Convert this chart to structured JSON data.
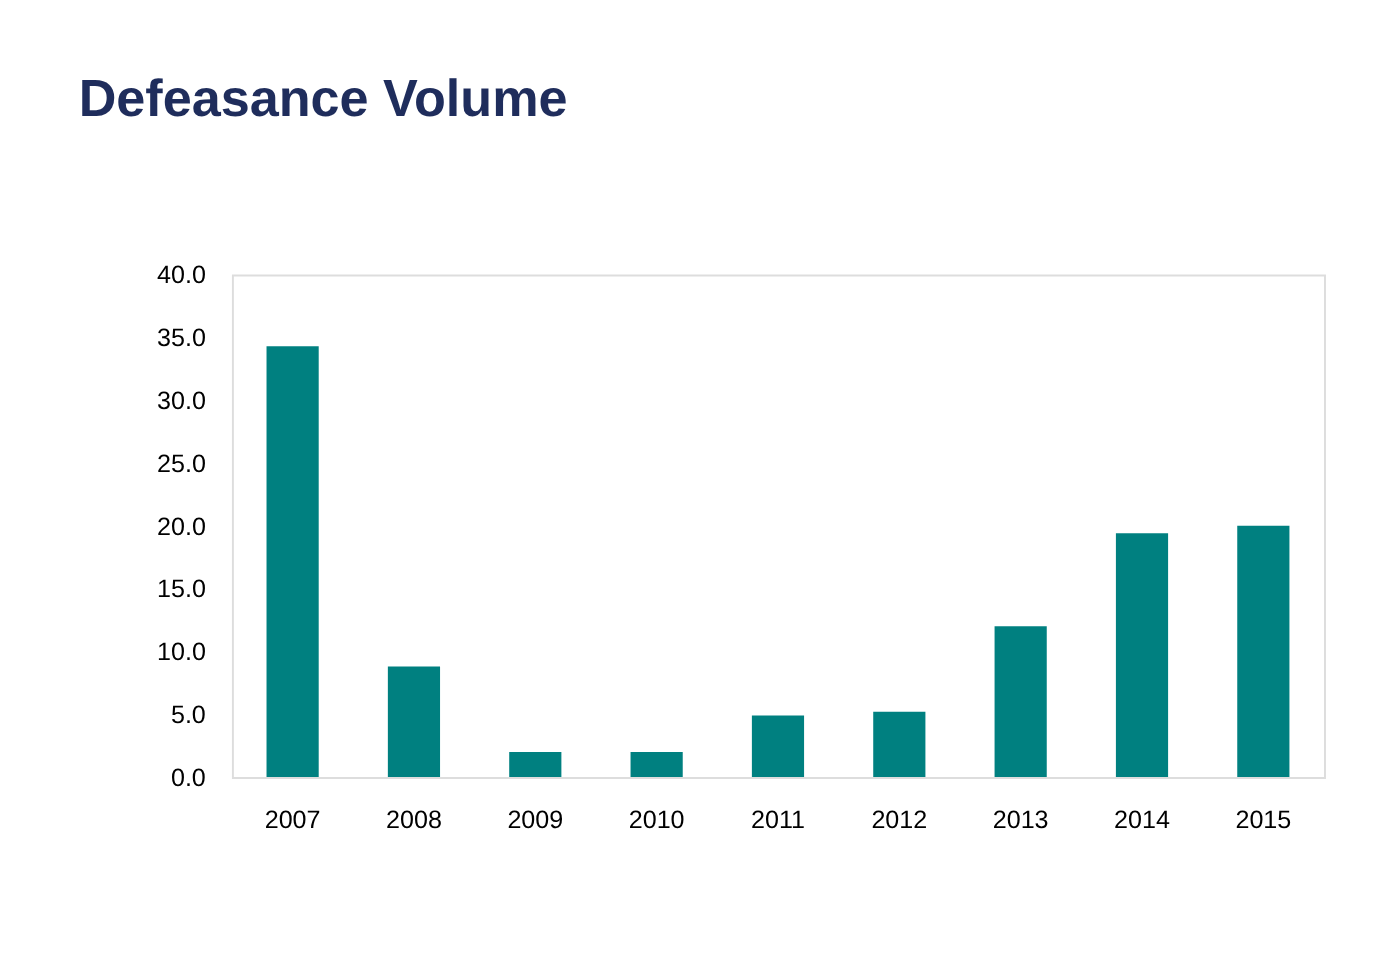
{
  "chart_data": {
    "type": "bar",
    "title": "Defeasance Volume",
    "categories": [
      "2007",
      "2008",
      "2009",
      "2010",
      "2011",
      "2012",
      "2013",
      "2014",
      "2015"
    ],
    "values": [
      34.3,
      8.8,
      2.0,
      2.0,
      4.9,
      5.2,
      12.0,
      19.4,
      20.0
    ],
    "color": "#008080",
    "ylim": [
      0,
      40
    ],
    "yticks": [
      {
        "value": 0,
        "label": "0.0"
      },
      {
        "value": 5,
        "label": "5.0"
      },
      {
        "value": 10,
        "label": "10.0"
      },
      {
        "value": 15,
        "label": "15.0"
      },
      {
        "value": 20,
        "label": "20.0"
      },
      {
        "value": 25,
        "label": "25.0"
      },
      {
        "value": 30,
        "label": "30.0"
      },
      {
        "value": 35,
        "label": "35.0"
      },
      {
        "value": 40,
        "label": "40.0"
      }
    ],
    "grid": false,
    "legend": false
  }
}
